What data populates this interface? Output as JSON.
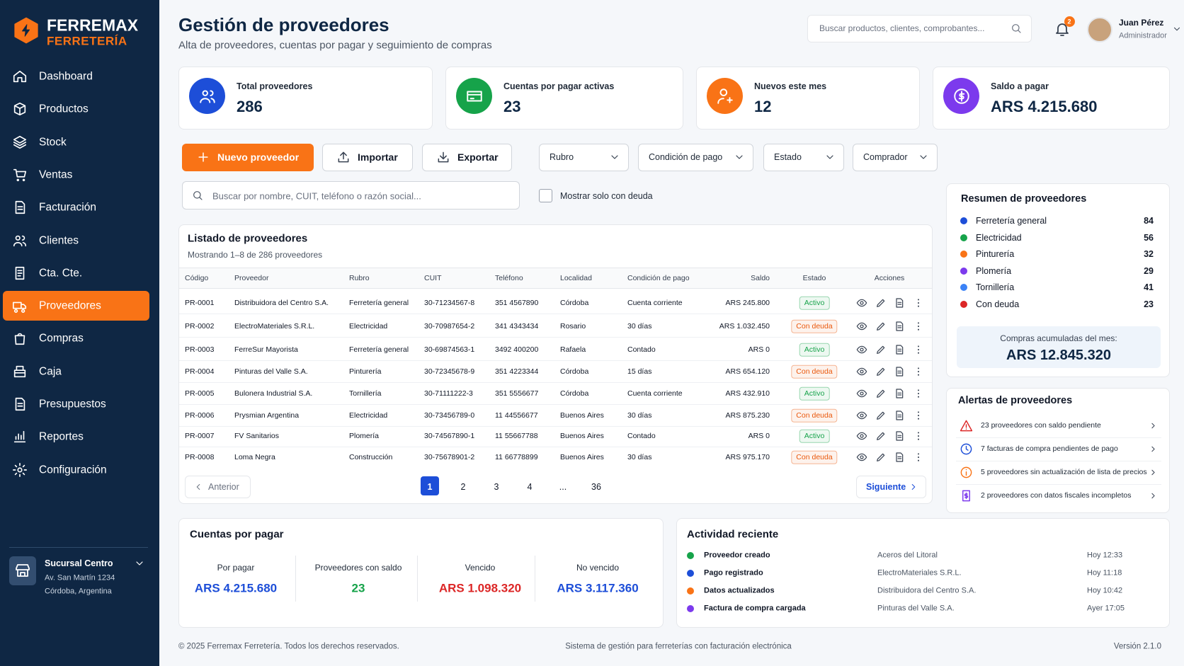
{
  "sidebar": {
    "brand": "FERREMAX",
    "brand_sub": "FERRETERÍA",
    "nav": [
      {
        "label": "Dashboard"
      },
      {
        "label": "Productos"
      },
      {
        "label": "Stock"
      },
      {
        "label": "Ventas"
      },
      {
        "label": "Facturación"
      },
      {
        "label": "Clientes"
      },
      {
        "label": "Cta. Cte."
      },
      {
        "label": "Proveedores",
        "active": true
      },
      {
        "label": "Compras"
      },
      {
        "label": "Caja"
      },
      {
        "label": "Presupuestos"
      },
      {
        "label": "Reportes"
      },
      {
        "label": "Configuración"
      }
    ],
    "branch": {
      "name": "Sucursal Centro",
      "address": "Av. San Martín 1234",
      "city": "Córdoba, Argentina"
    }
  },
  "header": {
    "title": "Gestión de proveedores",
    "subtitle": "Alta de proveedores, cuentas por pagar y seguimiento de compras",
    "search_placeholder": "Buscar productos, clientes, comprobantes...",
    "notifications": "2",
    "user_name": "Juan Pérez",
    "user_role": "Administrador"
  },
  "kpis": [
    {
      "label": "Total proveedores",
      "value": "286",
      "color": "#1d4ed8"
    },
    {
      "label": "Cuentas por pagar activas",
      "value": "23",
      "color": "#16a34a"
    },
    {
      "label": "Nuevos este mes",
      "value": "12",
      "color": "#f97316"
    },
    {
      "label": "Saldo a pagar",
      "value": "ARS 4.215.680",
      "color": "#7c3aed"
    }
  ],
  "toolbar": {
    "buttons": [
      "Nuevo proveedor",
      "Importar",
      "Exportar"
    ],
    "filters": [
      "Rubro",
      "Condición de pago",
      "Estado",
      "Comprador"
    ],
    "search_placeholder": "Buscar por nombre, CUIT, teléfono o razón social...",
    "checkbox_label": "Mostrar solo con deuda"
  },
  "table": {
    "title": "Listado de proveedores",
    "subtitle": "Mostrando 1–8 de 286 proveedores",
    "columns": [
      {
        "label": "Código"
      },
      {
        "label": "Proveedor"
      },
      {
        "label": "Rubro"
      },
      {
        "label": "CUIT"
      },
      {
        "label": "Teléfono"
      },
      {
        "label": "Localidad"
      },
      {
        "label": "Condición de pago"
      },
      {
        "label": "Saldo",
        "align": "right"
      },
      {
        "label": "Estado",
        "align": "center"
      },
      {
        "label": "Acciones",
        "align": "center"
      }
    ],
    "rows": [
      {
        "cells": [
          "PR-0001",
          "Distribuidora del Centro S.A.",
          "Ferretería general",
          "30-71234567-8",
          "351 4567890",
          "Córdoba",
          "Cuenta corriente",
          "ARS 245.800",
          "Activo"
        ],
        "status_color": "#16a34a"
      },
      {
        "cells": [
          "PR-0002",
          "ElectroMateriales S.R.L.",
          "Electricidad",
          "30-70987654-2",
          "341 4343434",
          "Rosario",
          "30 días",
          "ARS 1.032.450",
          "Con deuda"
        ],
        "status_color": "#ea580c"
      },
      {
        "cells": [
          "PR-0003",
          "FerreSur Mayorista",
          "Ferretería general",
          "30-69874563-1",
          "3492 400200",
          "Rafaela",
          "Contado",
          "ARS 0",
          "Activo"
        ],
        "status_color": "#16a34a"
      },
      {
        "cells": [
          "PR-0004",
          "Pinturas del Valle S.A.",
          "Pinturería",
          "30-72345678-9",
          "351 4223344",
          "Córdoba",
          "15 días",
          "ARS 654.120",
          "Con deuda"
        ],
        "status_color": "#ea580c"
      },
      {
        "cells": [
          "PR-0005",
          "Bulonera Industrial S.A.",
          "Tornillería",
          "30-71111222-3",
          "351 5556677",
          "Córdoba",
          "Cuenta corriente",
          "ARS 432.910",
          "Activo"
        ],
        "status_color": "#16a34a"
      },
      {
        "cells": [
          "PR-0006",
          "Prysmian Argentina",
          "Electricidad",
          "30-73456789-0",
          "11 44556677",
          "Buenos Aires",
          "30 días",
          "ARS 875.230",
          "Con deuda"
        ],
        "status_color": "#ea580c"
      },
      {
        "cells": [
          "PR-0007",
          "FV Sanitarios",
          "Plomería",
          "30-74567890-1",
          "11 55667788",
          "Buenos Aires",
          "Contado",
          "ARS 0",
          "Activo"
        ],
        "status_color": "#16a34a"
      },
      {
        "cells": [
          "PR-0008",
          "Loma Negra",
          "Construcción",
          "30-75678901-2",
          "11 66778899",
          "Buenos Aires",
          "30 días",
          "ARS 975.170",
          "Con deuda"
        ],
        "status_color": "#ea580c"
      }
    ],
    "pagination": {
      "prev": "Anterior",
      "next": "Siguiente",
      "pages": [
        {
          "label": "1",
          "active": true
        },
        {
          "label": "2"
        },
        {
          "label": "3"
        },
        {
          "label": "4"
        },
        {
          "label": "..."
        },
        {
          "label": "36"
        }
      ]
    }
  },
  "summary": {
    "title": "Resumen de proveedores",
    "items": [
      {
        "name": "Ferretería general",
        "count": "84",
        "color": "#1d4ed8"
      },
      {
        "name": "Electricidad",
        "count": "56",
        "color": "#16a34a"
      },
      {
        "name": "Pinturería",
        "count": "32",
        "color": "#f97316"
      },
      {
        "name": "Plomería",
        "count": "29",
        "color": "#7c3aed"
      },
      {
        "name": "Tornillería",
        "count": "41",
        "color": "#3b82f6"
      },
      {
        "name": "Con deuda",
        "count": "23",
        "color": "#dc2626"
      }
    ],
    "total_label": "Compras acumuladas del mes:",
    "total_value": "ARS 12.845.320"
  },
  "alerts": {
    "title": "Alertas de proveedores",
    "items": [
      {
        "text": "23 proveedores con saldo pendiente",
        "color": "#dc2626"
      },
      {
        "text": "7 facturas de compra pendientes de pago",
        "color": "#1d4ed8"
      },
      {
        "text": "5 proveedores sin actualización de lista de precios",
        "color": "#f97316"
      },
      {
        "text": "2 proveedores con datos fiscales incompletos",
        "color": "#7c3aed"
      }
    ]
  },
  "payables": {
    "title": "Cuentas por pagar",
    "items": [
      {
        "label": "Por pagar",
        "value": "ARS 4.215.680",
        "color": "#1d4ed8"
      },
      {
        "label": "Proveedores con saldo",
        "value": "23",
        "color": "#16a34a"
      },
      {
        "label": "Vencido",
        "value": "ARS 1.098.320",
        "color": "#dc2626"
      },
      {
        "label": "No vencido",
        "value": "ARS 3.117.360",
        "color": "#1d4ed8"
      }
    ]
  },
  "activity": {
    "title": "Actividad reciente",
    "items": [
      {
        "event": "Proveedor creado",
        "subject": "Aceros del Litoral",
        "time": "Hoy 12:33",
        "color": "#16a34a"
      },
      {
        "event": "Pago registrado",
        "subject": "ElectroMateriales S.R.L.",
        "time": "Hoy 11:18",
        "color": "#1d4ed8"
      },
      {
        "event": "Datos actualizados",
        "subject": "Distribuidora del Centro S.A.",
        "time": "Hoy 10:42",
        "color": "#f97316"
      },
      {
        "event": "Factura de compra cargada",
        "subject": "Pinturas del Valle S.A.",
        "time": "Ayer 17:05",
        "color": "#7c3aed"
      }
    ]
  },
  "footer": {
    "left": "© 2025 Ferremax Ferretería. Todos los derechos reservados.",
    "center": "Sistema de gestión para ferreterías con facturación electrónica",
    "right": "Versión 2.1.0"
  }
}
